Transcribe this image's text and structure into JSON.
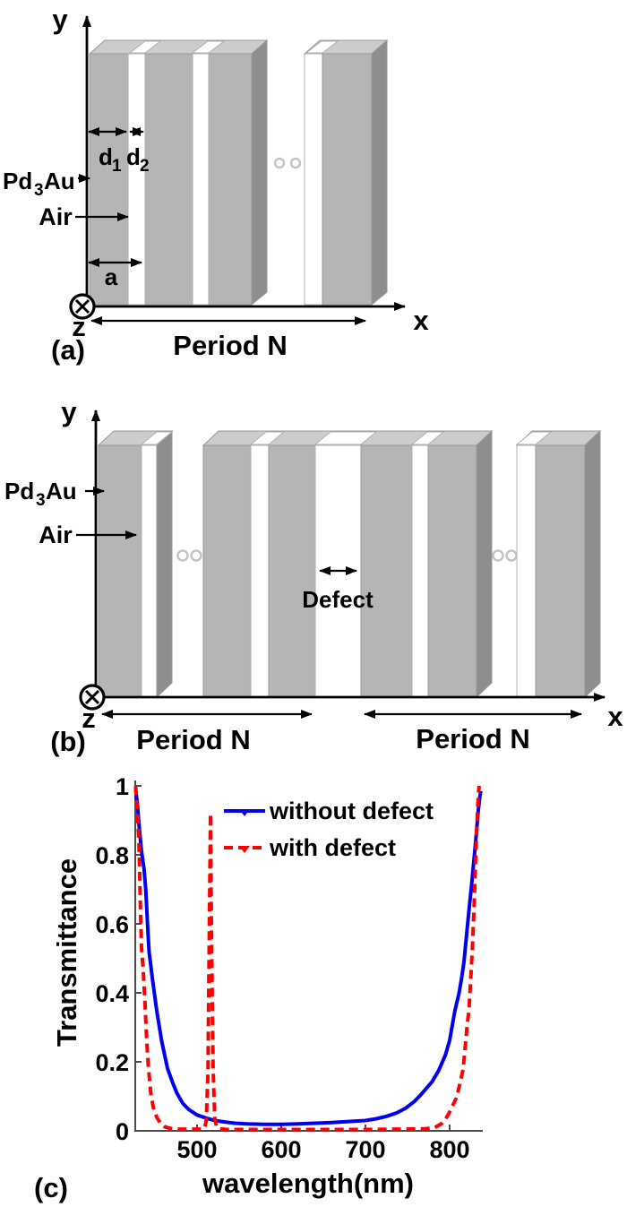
{
  "figure": {
    "panel_a": {
      "label": "(a)",
      "y_axis_label": "y",
      "x_axis_label": "x",
      "z_axis_label": "z",
      "material": {
        "pre": "Pd",
        "sub": "3",
        "post": "Au"
      },
      "air_label": "Air",
      "d1": {
        "main": "d",
        "sub": "1"
      },
      "d2": {
        "main": "d",
        "sub": "2"
      },
      "lattice_label": "a",
      "period_label": "Period N"
    },
    "panel_b": {
      "label": "(b)",
      "y_axis_label": "y",
      "x_axis_label": "x",
      "z_axis_label": "z",
      "material": {
        "pre": "Pd",
        "sub": "3",
        "post": "Au"
      },
      "air_label": "Air",
      "defect_label": "Defect",
      "period_label_left": "Period N",
      "period_label_right": "Period N"
    },
    "panel_c": {
      "label": "(c)"
    }
  },
  "colors": {
    "bar_front": "#b5b5b5",
    "bar_top": "#cccccc",
    "bar_side": "#8e8e8e",
    "bar_outline": "#989898",
    "slit_outline": "#b0b0b0",
    "ellipsis_ring": "#c4c4c4",
    "chart_axis": "#4a4a4a",
    "curve_blue": "#0000ee",
    "curve_red": "#ff0000"
  },
  "chart_data": {
    "type": "line",
    "title": "",
    "xlabel": "wavelength(nm)",
    "ylabel": "Transmittance",
    "xlim": [
      425,
      840
    ],
    "ylim": [
      0,
      1
    ],
    "x_ticks": [
      500,
      600,
      700,
      800
    ],
    "y_ticks": [
      "0",
      "0.2",
      "0.4",
      "0.6",
      "0.8",
      "1"
    ],
    "grid": false,
    "legend_position": "top-left-inside",
    "series": [
      {
        "name": "without defect",
        "color": "#0000ee",
        "style": "solid",
        "marker": "triangle-down",
        "points": [
          [
            427,
            0.99
          ],
          [
            429,
            0.95
          ],
          [
            431,
            0.89
          ],
          [
            434,
            0.81
          ],
          [
            437,
            0.76
          ],
          [
            439,
            0.7
          ],
          [
            441,
            0.61
          ],
          [
            443,
            0.52
          ],
          [
            447,
            0.44
          ],
          [
            452,
            0.35
          ],
          [
            458,
            0.26
          ],
          [
            465,
            0.18
          ],
          [
            471,
            0.14
          ],
          [
            476,
            0.11
          ],
          [
            483,
            0.08
          ],
          [
            490,
            0.062
          ],
          [
            500,
            0.046
          ],
          [
            511,
            0.037
          ],
          [
            521,
            0.03
          ],
          [
            532,
            0.026
          ],
          [
            545,
            0.022
          ],
          [
            560,
            0.02
          ],
          [
            580,
            0.019
          ],
          [
            600,
            0.019
          ],
          [
            620,
            0.02
          ],
          [
            640,
            0.022
          ],
          [
            660,
            0.024
          ],
          [
            680,
            0.027
          ],
          [
            700,
            0.03
          ],
          [
            713,
            0.035
          ],
          [
            725,
            0.042
          ],
          [
            737,
            0.052
          ],
          [
            748,
            0.066
          ],
          [
            758,
            0.085
          ],
          [
            766,
            0.105
          ],
          [
            773,
            0.125
          ],
          [
            779,
            0.142
          ],
          [
            787,
            0.175
          ],
          [
            795,
            0.22
          ],
          [
            800,
            0.262
          ],
          [
            806,
            0.345
          ],
          [
            811,
            0.397
          ],
          [
            814,
            0.44
          ],
          [
            817,
            0.49
          ],
          [
            820,
            0.565
          ],
          [
            823,
            0.64
          ],
          [
            826,
            0.71
          ],
          [
            829,
            0.79
          ],
          [
            832,
            0.87
          ],
          [
            834,
            0.93
          ],
          [
            836,
            0.97
          ],
          [
            837,
            0.985
          ]
        ]
      },
      {
        "name": "with defect",
        "color": "#ff0000",
        "style": "dashed",
        "marker": "triangle-down",
        "points": [
          [
            427,
            1.0
          ],
          [
            429,
            0.93
          ],
          [
            431,
            0.84
          ],
          [
            433,
            0.62
          ],
          [
            434,
            0.53
          ],
          [
            436,
            0.47
          ],
          [
            438,
            0.38
          ],
          [
            440,
            0.27
          ],
          [
            442,
            0.19
          ],
          [
            445,
            0.11
          ],
          [
            448,
            0.068
          ],
          [
            452,
            0.04
          ],
          [
            456,
            0.024
          ],
          [
            461,
            0.013
          ],
          [
            466,
            0.008
          ],
          [
            472,
            0.006
          ],
          [
            480,
            0.005
          ],
          [
            495,
            0.005
          ],
          [
            505,
            0.005
          ],
          [
            509,
            0.009
          ],
          [
            511,
            0.03
          ],
          [
            513,
            0.17
          ],
          [
            514,
            0.45
          ],
          [
            516,
            0.92
          ],
          [
            517,
            0.6
          ],
          [
            519,
            0.18
          ],
          [
            521,
            0.04
          ],
          [
            523,
            0.012
          ],
          [
            527,
            0.006
          ],
          [
            535,
            0.004
          ],
          [
            560,
            0.004
          ],
          [
            600,
            0.004
          ],
          [
            650,
            0.004
          ],
          [
            700,
            0.004
          ],
          [
            740,
            0.005
          ],
          [
            770,
            0.006
          ],
          [
            782,
            0.009
          ],
          [
            790,
            0.02
          ],
          [
            795,
            0.034
          ],
          [
            799,
            0.05
          ],
          [
            803,
            0.07
          ],
          [
            807,
            0.09
          ],
          [
            810,
            0.115
          ],
          [
            813,
            0.145
          ],
          [
            816,
            0.178
          ],
          [
            818,
            0.23
          ],
          [
            821,
            0.31
          ],
          [
            823,
            0.35
          ],
          [
            825,
            0.44
          ],
          [
            827,
            0.53
          ],
          [
            829,
            0.65
          ],
          [
            831,
            0.8
          ],
          [
            833,
            0.92
          ],
          [
            834,
            0.97
          ],
          [
            835,
            1.0
          ]
        ]
      }
    ]
  }
}
